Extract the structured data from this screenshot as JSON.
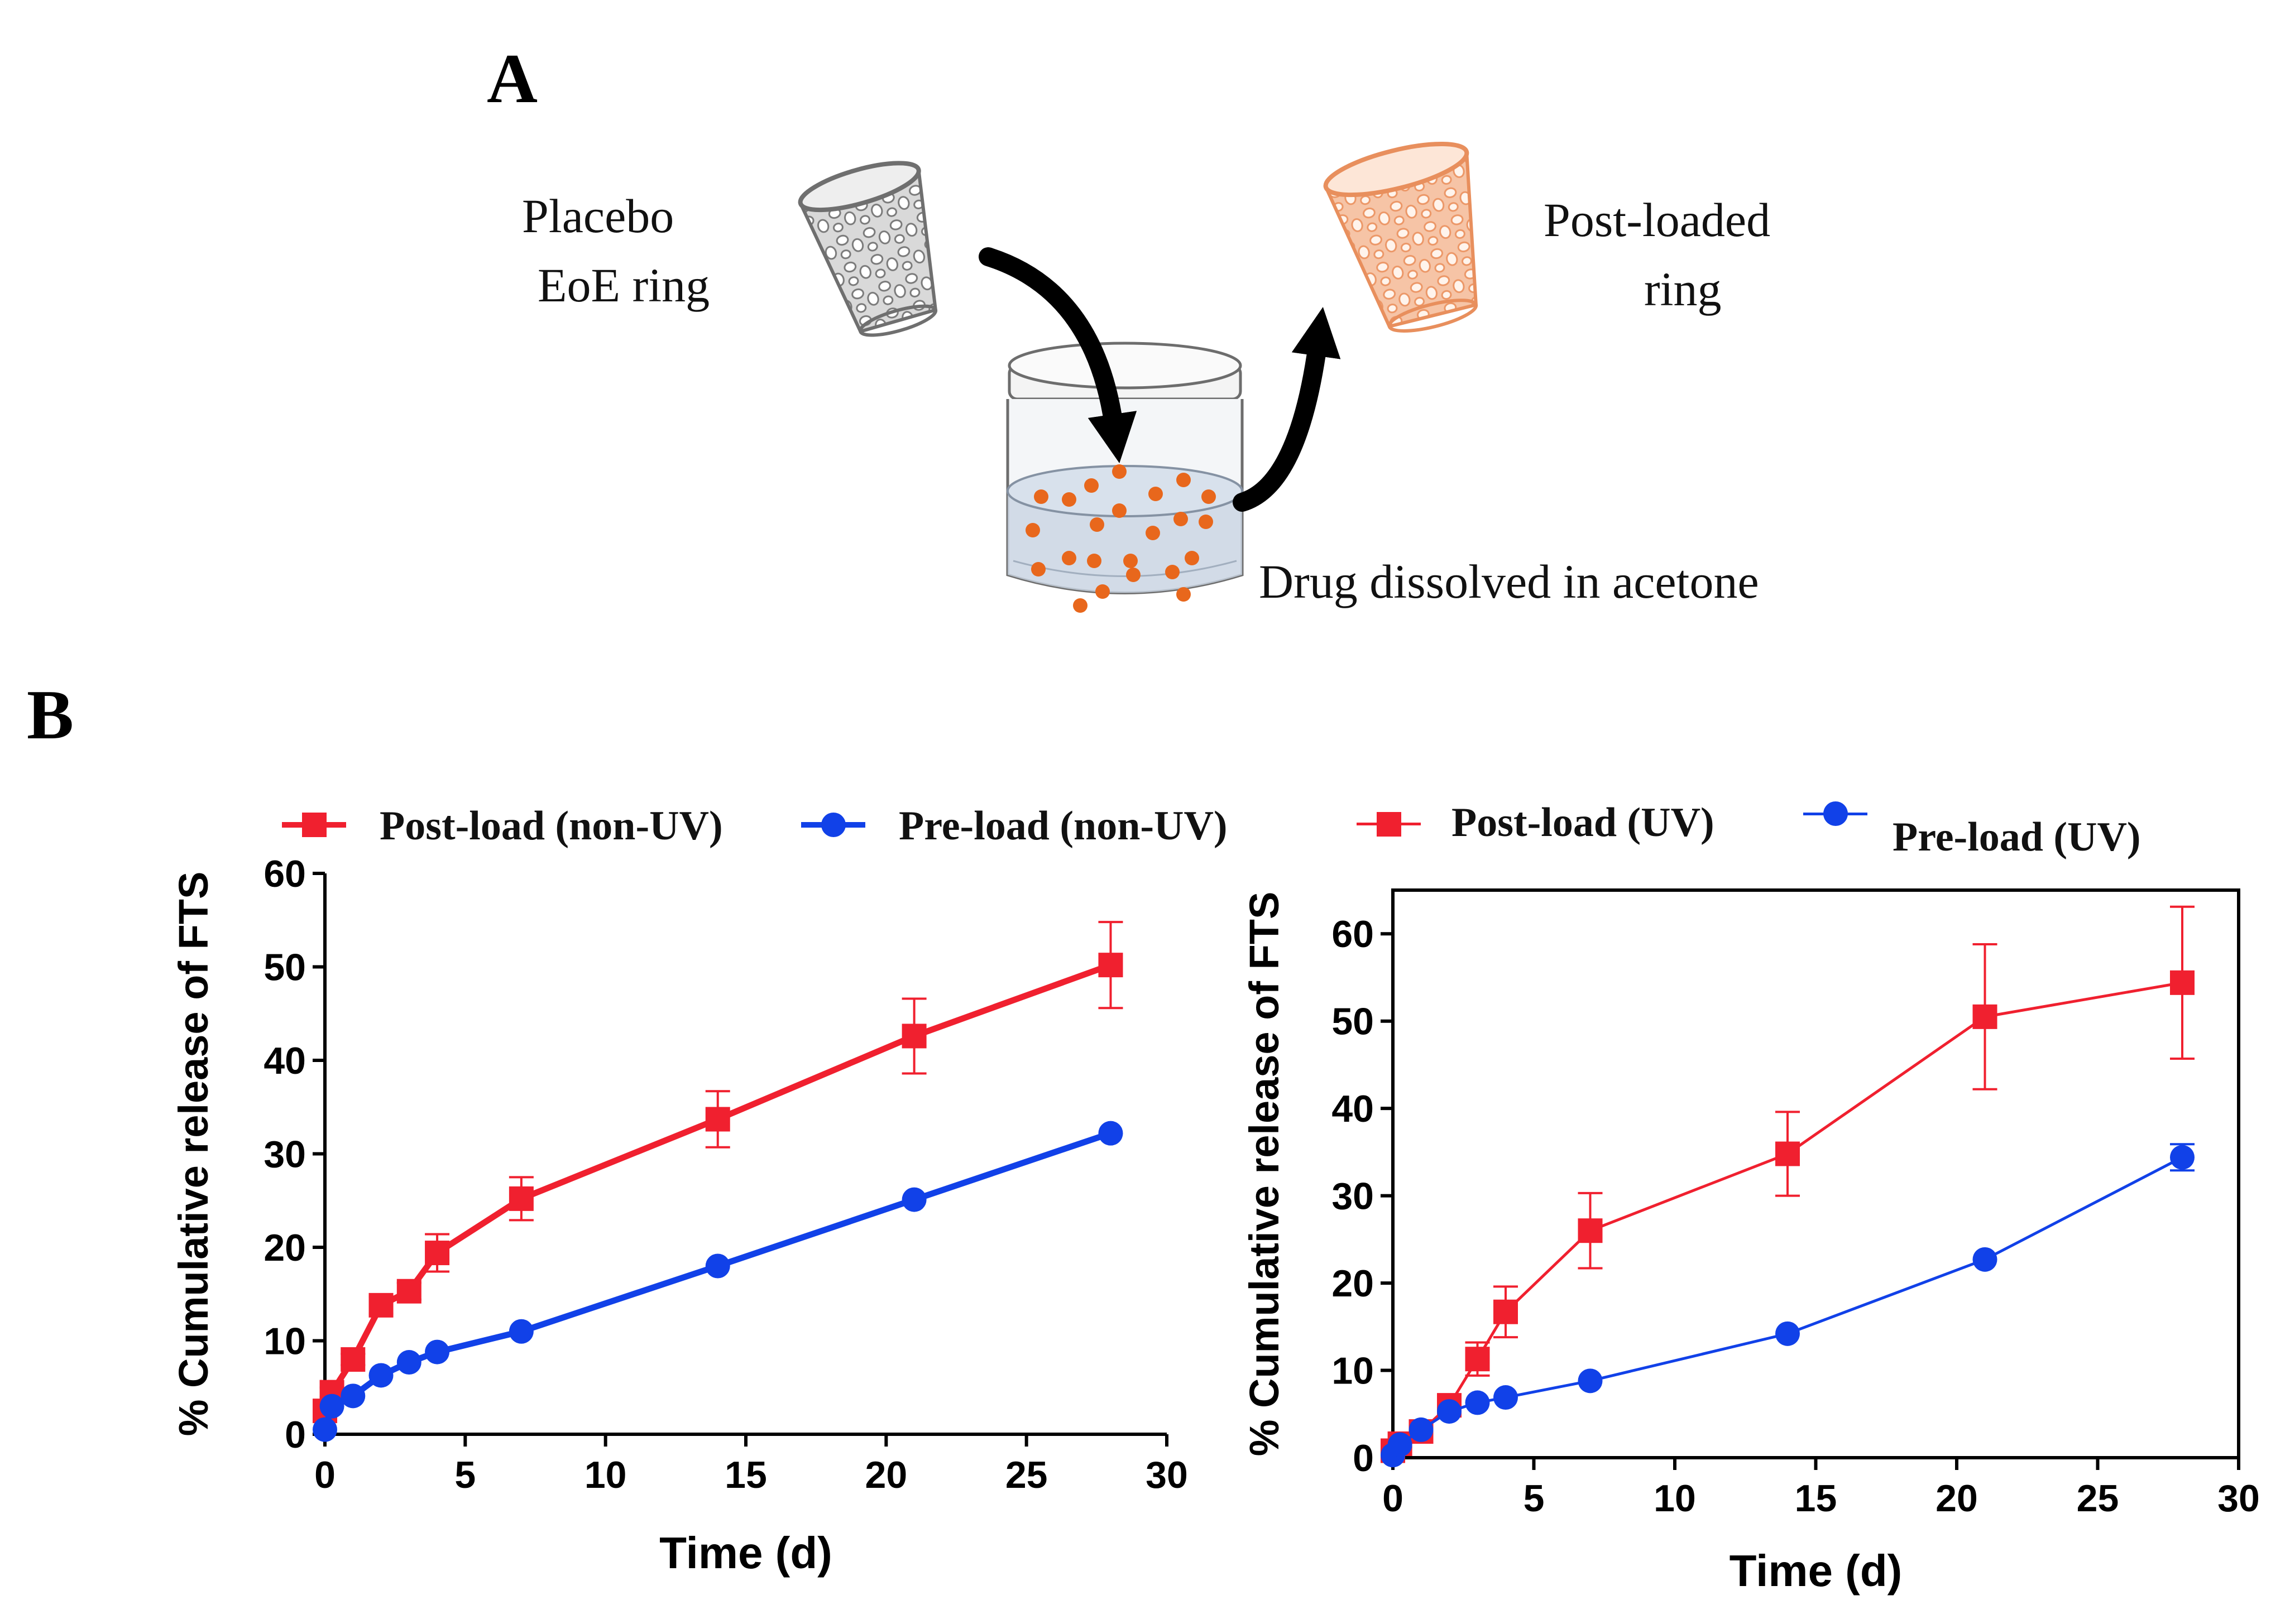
{
  "panels": {
    "a": "A",
    "b": "B"
  },
  "scene": {
    "placebo_label": [
      "Placebo",
      "EoE ring"
    ],
    "post_loaded_label": [
      "Post-loaded",
      "ring"
    ],
    "jar_label": "Drug dissolved in acetone",
    "colors": {
      "placebo_ring": "#8e8e8e",
      "loaded_ring": "#f2a77f",
      "drug_dots": "#e8671c",
      "arrow": "#000000"
    }
  },
  "chart_data": [
    {
      "type": "line",
      "x": [
        0,
        0.25,
        1,
        2,
        3,
        4,
        7,
        14,
        21,
        28
      ],
      "series": [
        {
          "name": "Post-load (non-UV)",
          "color": "#f0202f",
          "marker": "square",
          "values": [
            2.5,
            4.5,
            8,
            13.8,
            15.3,
            19.4,
            25.2,
            33.7,
            42.6,
            50.2
          ],
          "errors": [
            0.5,
            0.5,
            0.6,
            0.9,
            0.9,
            2.0,
            2.3,
            3.0,
            4.0,
            4.6
          ]
        },
        {
          "name": "Pre-load (non-UV)",
          "color": "#1141e8",
          "marker": "circle",
          "values": [
            0.5,
            3,
            4.1,
            6.3,
            7.7,
            8.8,
            11,
            18,
            25.1,
            32.2
          ],
          "errors": [
            0,
            0,
            0,
            0,
            0,
            0,
            0,
            0,
            0,
            0
          ]
        }
      ],
      "xlabel": "Time (d)",
      "ylabel": "% Cumulative release of FTS",
      "xlim": [
        0,
        30
      ],
      "ylim": [
        0,
        60
      ],
      "xticks": [
        0,
        5,
        10,
        15,
        20,
        25,
        30
      ],
      "yticks": [
        0,
        10,
        20,
        30,
        40,
        50,
        60
      ],
      "grid": false,
      "legend": "top"
    },
    {
      "type": "line",
      "x": [
        0,
        0.25,
        1,
        2,
        3,
        4,
        7,
        14,
        21,
        28
      ],
      "series": [
        {
          "name": "Post-load (UV)",
          "color": "#f0202f",
          "marker": "square",
          "values": [
            0.8,
            1.6,
            3,
            6,
            11.3,
            16.7,
            26,
            34.8,
            50.5,
            54.4
          ],
          "errors": [
            0.3,
            0.4,
            0.6,
            0.9,
            1.9,
            2.9,
            4.3,
            4.8,
            8.3,
            8.7
          ]
        },
        {
          "name": "Pre-load (UV)",
          "color": "#1141e8",
          "marker": "circle",
          "values": [
            0.3,
            1.5,
            3.2,
            5.3,
            6.3,
            6.9,
            8.8,
            14.2,
            22.7,
            34.4
          ],
          "errors": [
            0,
            0,
            0,
            0,
            0,
            0,
            0,
            0,
            0,
            1.5
          ]
        }
      ],
      "xlabel": "Time (d)",
      "ylabel": "% Cumulative release of FTS",
      "xlim": [
        0,
        30
      ],
      "ylim": [
        0,
        65
      ],
      "xticks": [
        0,
        5,
        10,
        15,
        20,
        25,
        30
      ],
      "yticks": [
        0,
        10,
        20,
        30,
        40,
        50,
        60
      ],
      "grid": false,
      "legend": "top"
    }
  ]
}
